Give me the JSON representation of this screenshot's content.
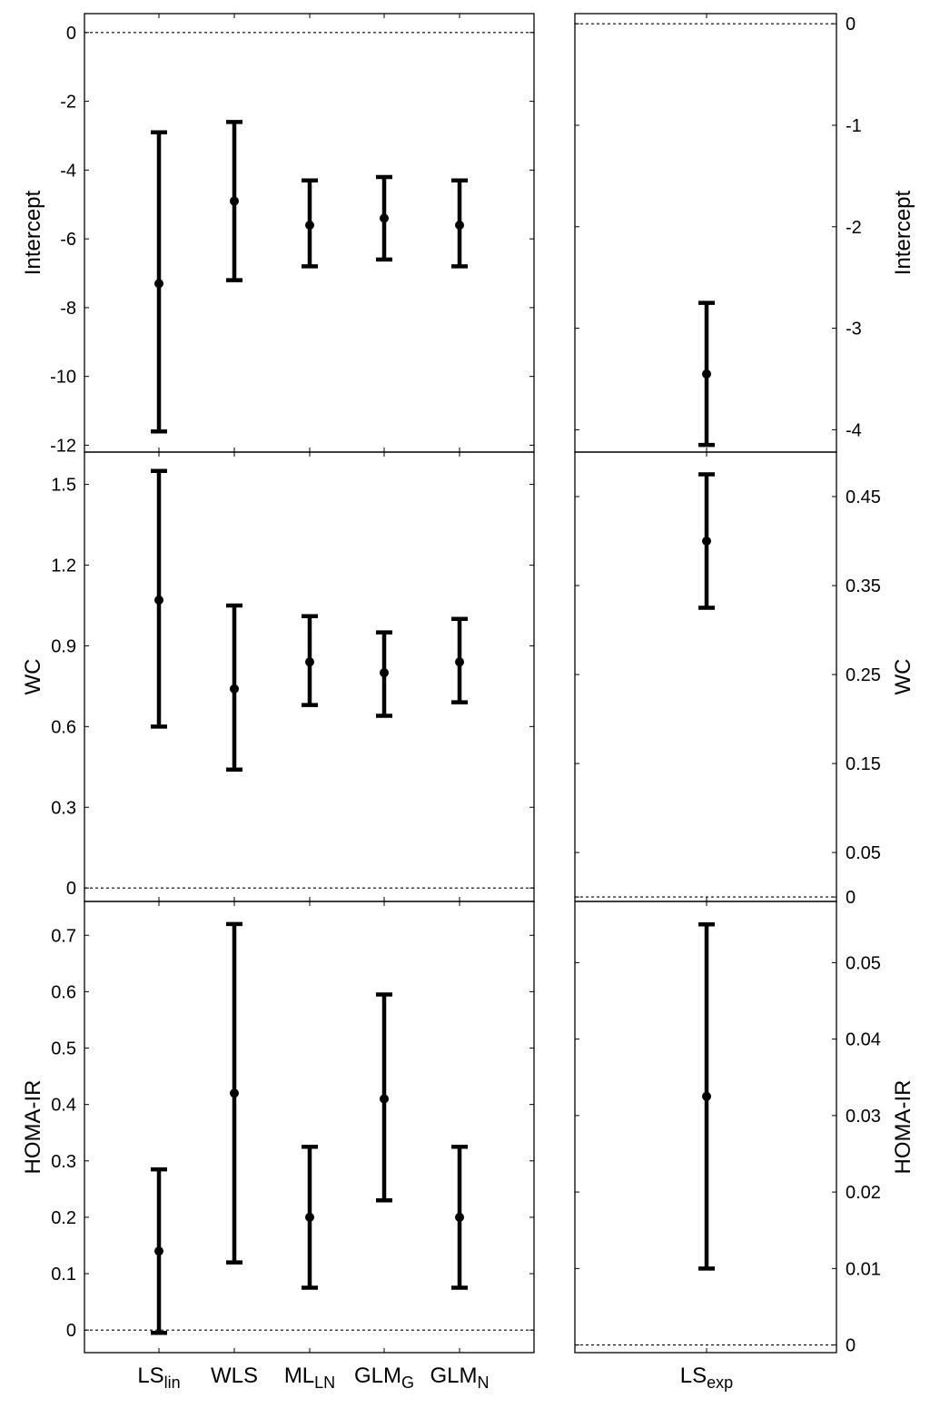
{
  "chart_data": [
    {
      "type": "errorbar",
      "panel": "intercept-left",
      "ylabel": "Intercept",
      "ylim": [
        -12.2,
        0.55
      ],
      "yticks": [
        0,
        -2,
        -4,
        -6,
        -8,
        -10,
        -12
      ],
      "ytick_labels": [
        "0",
        "-2",
        "-4",
        "-6",
        "-8",
        "-10",
        "-12"
      ],
      "reference_line": 0,
      "categories": [
        "LS_lin",
        "WLS",
        "ML_LN",
        "GLM_G",
        "GLM_N"
      ],
      "estimates": [
        -7.3,
        -4.9,
        -5.6,
        -5.4,
        -5.6
      ],
      "lower": [
        -11.6,
        -7.2,
        -6.8,
        -6.6,
        -6.8
      ],
      "upper": [
        -2.9,
        -2.6,
        -4.3,
        -4.2,
        -4.3
      ]
    },
    {
      "type": "errorbar",
      "panel": "intercept-right",
      "ylabel": "Intercept",
      "ylim": [
        -4.22,
        0.1
      ],
      "yticks": [
        0,
        -1,
        -2,
        -3,
        -4
      ],
      "ytick_labels": [
        "0",
        "-1",
        "-2",
        "-3",
        "-4"
      ],
      "reference_line": 0,
      "categories": [
        "LS_exp"
      ],
      "estimates": [
        -3.45
      ],
      "lower": [
        -4.15
      ],
      "upper": [
        -2.75
      ]
    },
    {
      "type": "errorbar",
      "panel": "wc-left",
      "ylabel": "WC",
      "ylim": [
        -0.05,
        1.62
      ],
      "yticks": [
        0,
        0.3,
        0.6,
        0.9,
        1.2,
        1.5
      ],
      "ytick_labels": [
        "0",
        "0.3",
        "0.6",
        "0.9",
        "1.2",
        "1.5"
      ],
      "reference_line": 0,
      "categories": [
        "LS_lin",
        "WLS",
        "ML_LN",
        "GLM_G",
        "GLM_N"
      ],
      "estimates": [
        1.07,
        0.74,
        0.84,
        0.8,
        0.84
      ],
      "lower": [
        0.6,
        0.44,
        0.68,
        0.64,
        0.69
      ],
      "upper": [
        1.55,
        1.05,
        1.01,
        0.95,
        1.0
      ]
    },
    {
      "type": "errorbar",
      "panel": "wc-right",
      "ylabel": "WC",
      "ylim": [
        -0.005,
        0.5
      ],
      "yticks": [
        0,
        0.05,
        0.15,
        0.25,
        0.35,
        0.45
      ],
      "ytick_labels": [
        "0",
        "0.05",
        "0.15",
        "0.25",
        "0.35",
        "0.45"
      ],
      "reference_line": 0,
      "categories": [
        "LS_exp"
      ],
      "estimates": [
        0.4
      ],
      "lower": [
        0.325
      ],
      "upper": [
        0.475
      ]
    },
    {
      "type": "errorbar",
      "panel": "homa-left",
      "ylabel": "HOMA-IR",
      "ylim": [
        -0.04,
        0.76
      ],
      "yticks": [
        0,
        0.1,
        0.2,
        0.3,
        0.4,
        0.5,
        0.6,
        0.7
      ],
      "ytick_labels": [
        "0",
        "0.1",
        "0.2",
        "0.3",
        "0.4",
        "0.5",
        "0.6",
        "0.7"
      ],
      "reference_line": 0,
      "categories": [
        "LS_lin",
        "WLS",
        "ML_LN",
        "GLM_G",
        "GLM_N"
      ],
      "estimates": [
        0.14,
        0.42,
        0.2,
        0.41,
        0.2
      ],
      "lower": [
        -0.005,
        0.12,
        0.075,
        0.23,
        0.075
      ],
      "upper": [
        0.285,
        0.72,
        0.325,
        0.595,
        0.325
      ]
    },
    {
      "type": "errorbar",
      "panel": "homa-right",
      "ylabel": "HOMA-IR",
      "ylim": [
        -0.001,
        0.058
      ],
      "yticks": [
        0,
        0.01,
        0.02,
        0.03,
        0.04,
        0.05
      ],
      "ytick_labels": [
        "0",
        "0.01",
        "0.02",
        "0.03",
        "0.04",
        "0.05"
      ],
      "reference_line": 0,
      "categories": [
        "LS_exp"
      ],
      "estimates": [
        0.0325
      ],
      "lower": [
        0.01
      ],
      "upper": [
        0.055
      ]
    }
  ],
  "x_labels": {
    "left": [
      {
        "main": "LS",
        "sub": "lin"
      },
      {
        "main": "WLS",
        "sub": ""
      },
      {
        "main": "ML",
        "sub": "LN"
      },
      {
        "main": "GLM",
        "sub": "G"
      },
      {
        "main": "GLM",
        "sub": "N"
      }
    ],
    "right": [
      {
        "main": "LS",
        "sub": "exp"
      }
    ]
  },
  "colors": {
    "ink": "#000000",
    "background": "#ffffff"
  }
}
